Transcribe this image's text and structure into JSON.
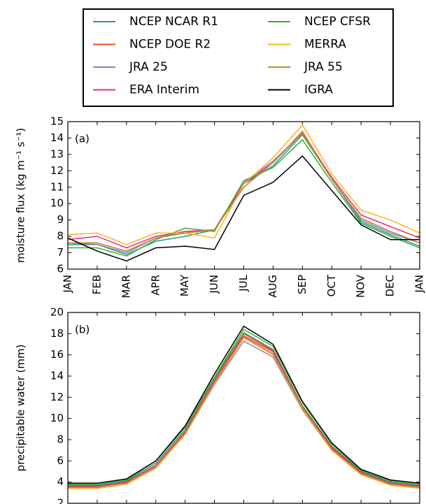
{
  "chart_data": [
    {
      "type": "line",
      "y_label": "moisture flux (kg m⁻¹ s⁻¹)",
      "panel_label": "(a)",
      "categories": [
        "JAN",
        "FEB",
        "MAR",
        "APR",
        "MAY",
        "JUN",
        "JUL",
        "AUG",
        "SEP",
        "OCT",
        "NOV",
        "DEC",
        "JAN"
      ],
      "ylim": [
        6,
        15
      ],
      "yticks": [
        6,
        7,
        8,
        9,
        10,
        11,
        12,
        13,
        14,
        15
      ],
      "series": [
        {
          "name": "NCEP NCAR R1",
          "color": "#1b9e8a",
          "values": [
            7.5,
            7.5,
            6.9,
            7.7,
            8.0,
            8.4,
            11.2,
            12.3,
            14.2,
            11.5,
            8.9,
            8.1,
            7.4
          ]
        },
        {
          "name": "NCEP DOE R2",
          "color": "#e8541c",
          "values": [
            7.6,
            7.6,
            7.1,
            7.9,
            8.2,
            8.4,
            11.0,
            12.5,
            14.4,
            11.5,
            9.1,
            8.3,
            7.6
          ]
        },
        {
          "name": "JRA 25",
          "color": "#8c7fc8",
          "values": [
            7.6,
            7.5,
            7.0,
            7.9,
            8.3,
            8.4,
            11.3,
            12.6,
            14.3,
            11.5,
            9.0,
            8.2,
            7.6
          ]
        },
        {
          "name": "ERA Interim",
          "color": "#e7298a",
          "values": [
            7.8,
            8.0,
            7.3,
            8.0,
            8.3,
            8.4,
            11.2,
            12.5,
            14.3,
            11.6,
            9.3,
            8.6,
            7.9
          ]
        },
        {
          "name": "NCEP CFSR",
          "color": "#3cae2c",
          "values": [
            7.3,
            7.3,
            6.8,
            7.8,
            8.5,
            8.3,
            11.4,
            12.2,
            13.9,
            11.3,
            8.8,
            8.0,
            7.3
          ]
        },
        {
          "name": "MERRA",
          "color": "#fdb515",
          "values": [
            8.1,
            8.2,
            7.5,
            8.2,
            8.2,
            7.9,
            11.2,
            12.8,
            14.8,
            11.8,
            9.6,
            9.0,
            8.2
          ]
        },
        {
          "name": "JRA 55",
          "color": "#c8892c",
          "values": [
            7.6,
            7.6,
            7.1,
            7.9,
            8.2,
            8.4,
            11.0,
            12.5,
            14.3,
            11.5,
            9.1,
            8.3,
            7.6
          ]
        },
        {
          "name": "IGRA",
          "color": "#000000",
          "values": [
            7.9,
            7.1,
            6.5,
            7.3,
            7.4,
            7.2,
            10.5,
            11.3,
            12.9,
            10.8,
            8.7,
            7.8,
            7.8
          ]
        }
      ]
    },
    {
      "type": "line",
      "y_label": "precipitable water (mm)",
      "panel_label": "(b)",
      "ylim": [
        2,
        20
      ],
      "yticks": [
        2,
        4,
        6,
        8,
        10,
        12,
        14,
        16,
        18,
        20
      ],
      "series": [
        {
          "color": "#1b9e8a",
          "values": [
            3.7,
            3.7,
            4.1,
            5.8,
            9.0,
            13.8,
            18.1,
            16.5,
            11.2,
            7.4,
            5.0,
            4.0,
            3.7
          ]
        },
        {
          "color": "#e8541c",
          "values": [
            3.6,
            3.6,
            4.0,
            5.6,
            8.8,
            13.6,
            18.0,
            16.4,
            11.1,
            7.3,
            4.9,
            3.9,
            3.6
          ]
        },
        {
          "color": "#8c7fc8",
          "values": [
            3.5,
            3.5,
            3.9,
            5.4,
            8.5,
            13.2,
            17.3,
            15.8,
            10.8,
            7.0,
            4.7,
            3.8,
            3.5
          ]
        },
        {
          "color": "#e7298a",
          "values": [
            3.6,
            3.6,
            4.0,
            5.6,
            8.7,
            13.5,
            17.8,
            16.3,
            11.0,
            7.2,
            4.9,
            3.9,
            3.6
          ]
        },
        {
          "color": "#3cae2c",
          "values": [
            3.8,
            3.8,
            4.2,
            6.0,
            9.2,
            13.9,
            18.4,
            16.8,
            11.5,
            7.6,
            5.1,
            4.1,
            3.8
          ]
        },
        {
          "color": "#fdb515",
          "values": [
            3.4,
            3.4,
            3.8,
            5.3,
            8.5,
            13.3,
            17.6,
            16.0,
            10.9,
            7.0,
            4.7,
            3.7,
            3.4
          ]
        },
        {
          "color": "#c8892c",
          "values": [
            3.5,
            3.5,
            3.9,
            5.5,
            8.6,
            13.4,
            17.7,
            16.1,
            11.0,
            7.1,
            4.8,
            3.8,
            3.5
          ]
        },
        {
          "color": "#000000",
          "values": [
            3.9,
            3.9,
            4.3,
            6.0,
            9.3,
            14.2,
            18.7,
            17.0,
            11.6,
            7.7,
            5.2,
            4.2,
            3.9
          ]
        }
      ]
    }
  ]
}
